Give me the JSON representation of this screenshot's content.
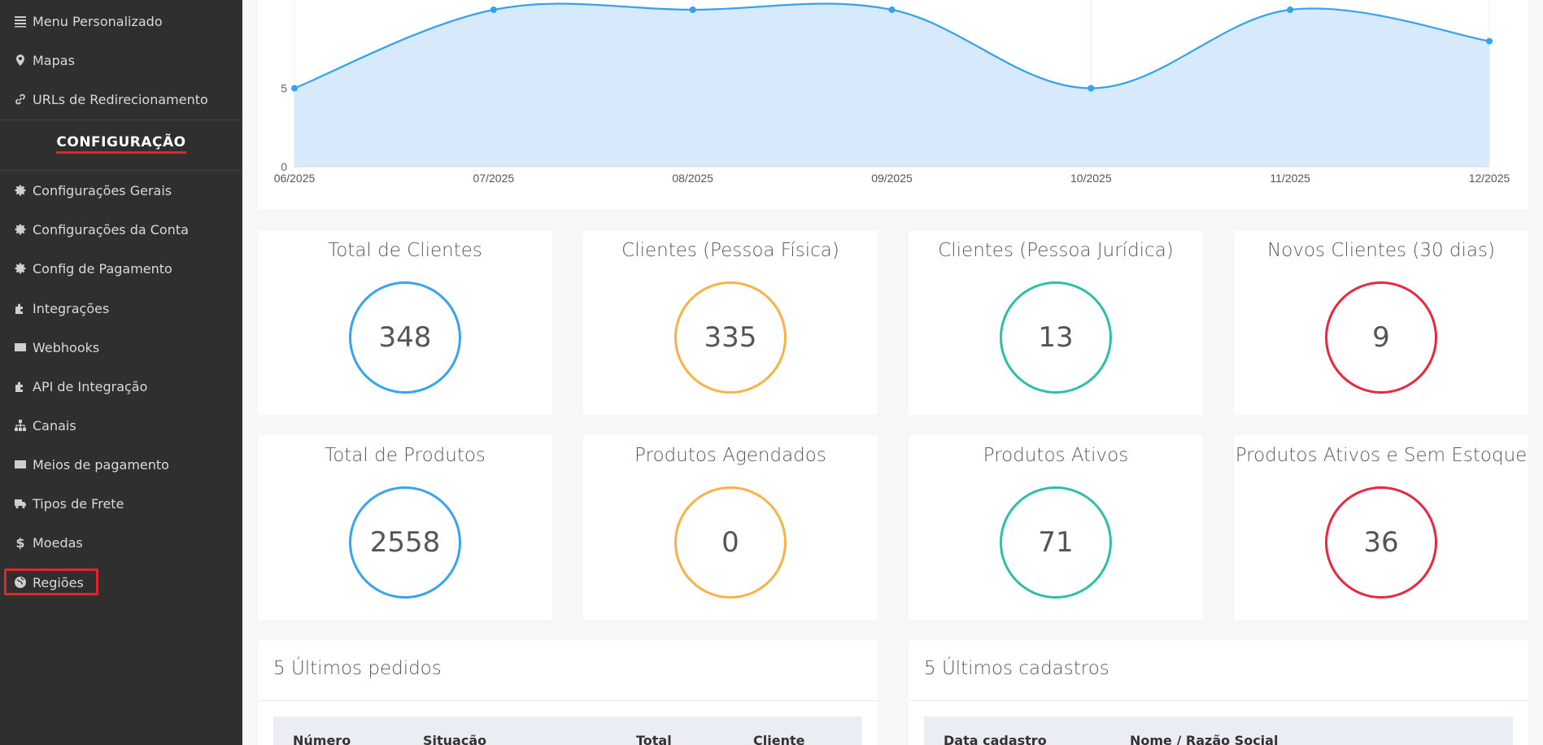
{
  "sidebar": {
    "top_items": [
      {
        "label": "Menu Personalizado",
        "icon": "list-icon"
      },
      {
        "label": "Mapas",
        "icon": "map-marker-icon"
      },
      {
        "label": "URLs de Redirecionamento",
        "icon": "link-icon"
      }
    ],
    "section_title": "CONFIGURAÇÃO",
    "config_items": [
      {
        "label": "Configurações Gerais",
        "icon": "gear-icon"
      },
      {
        "label": "Configurações da Conta",
        "icon": "gear-icon"
      },
      {
        "label": "Config de Pagamento",
        "icon": "gear-icon"
      },
      {
        "label": "Integrações",
        "icon": "puzzle-icon"
      },
      {
        "label": "Webhooks",
        "icon": "card-icon"
      },
      {
        "label": "API de Integração",
        "icon": "puzzle-icon"
      },
      {
        "label": "Canais",
        "icon": "sitemap-icon"
      },
      {
        "label": "Meios de pagamento",
        "icon": "card-icon"
      },
      {
        "label": "Tipos de Frete",
        "icon": "truck-icon"
      },
      {
        "label": "Moedas",
        "icon": "dollar-icon"
      },
      {
        "label": "Regiões",
        "icon": "globe-icon"
      }
    ],
    "highlight_color": "#e0262b"
  },
  "chart_data": {
    "type": "area",
    "x": [
      "06/2025",
      "07/2025",
      "08/2025",
      "09/2025",
      "10/2025",
      "11/2025",
      "12/2025"
    ],
    "series": [
      {
        "values": [
          5,
          10,
          10,
          10,
          5,
          10,
          8
        ]
      }
    ],
    "y_ticks": [
      "0",
      "5"
    ],
    "ylim": [
      0,
      10
    ],
    "line_color": "#36a2eb",
    "fill_color": "#d6eafb",
    "grid": true
  },
  "stats_clientes": [
    {
      "title": "Total de Clientes",
      "value": "348",
      "color": "blue"
    },
    {
      "title": "Clientes (Pessoa Física)",
      "value": "335",
      "color": "orange"
    },
    {
      "title": "Clientes (Pessoa Jurídica)",
      "value": "13",
      "color": "teal"
    },
    {
      "title": "Novos Clientes (30 dias)",
      "value": "9",
      "color": "red"
    }
  ],
  "stats_produtos": [
    {
      "title": "Total de Produtos",
      "value": "2558",
      "color": "blue"
    },
    {
      "title": "Produtos Agendados",
      "value": "0",
      "color": "orange"
    },
    {
      "title": "Produtos Ativos",
      "value": "71",
      "color": "teal"
    },
    {
      "title": "Produtos Ativos e Sem Estoque",
      "value": "36",
      "color": "red"
    }
  ],
  "pedidos": {
    "title": "5 Últimos pedidos",
    "columns": [
      "Número",
      "Situação",
      "Total",
      "Cliente"
    ]
  },
  "cadastros": {
    "title": "5 Últimos cadastros",
    "columns": [
      "Data cadastro",
      "Nome / Razão Social"
    ]
  }
}
